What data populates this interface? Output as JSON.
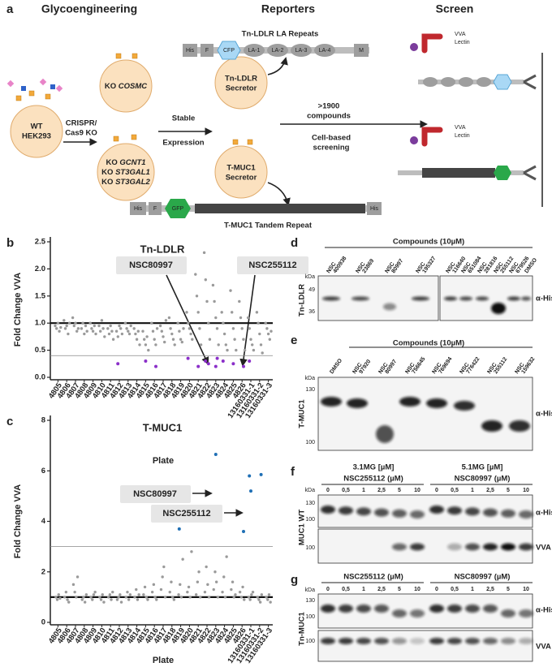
{
  "panel_a": {
    "letter": "a",
    "headers": [
      "Glycoengineering",
      "Reporters",
      "Screen"
    ],
    "wt": [
      "WT",
      "HEK293"
    ],
    "crispr": [
      "CRISPR/",
      "Cas9 KO"
    ],
    "ko_cosmc": [
      "KO ",
      "COSMC"
    ],
    "ko_lines": [
      [
        "KO ",
        "GCNT1"
      ],
      [
        "KO ",
        "ST3GAL1"
      ],
      [
        "KO ",
        "ST3GAL2"
      ]
    ],
    "stable": [
      "Stable",
      "Expression"
    ],
    "tn_secretor": [
      "Tn-LDLR",
      "Secretor"
    ],
    "tmuc_secretor": [
      "T-MUC1",
      "Secretor"
    ],
    "tn_construct_title": "Tn-LDLR LA Repeats",
    "tn_construct": [
      "His",
      "F",
      "CFP",
      "LA-1",
      "LA-2",
      "LA-3",
      "LA-4",
      "M"
    ],
    "tmuc_construct_title": "T-MUC1 Tandem Repeat",
    "tmuc_construct": [
      "His",
      "F",
      "GFP",
      "His"
    ],
    "compounds": [
      ">1900",
      "compounds"
    ],
    "cell_based": [
      "Cell-based",
      "screening"
    ],
    "lectin": [
      "VVA",
      "Lectin"
    ]
  },
  "panel_b": {
    "letter": "b",
    "title": "Tn-LDLR",
    "ylabel": "Fold Change VVA",
    "xlabel": "Plate",
    "categories": [
      "4805",
      "4806",
      "4807",
      "4808",
      "4809",
      "4810",
      "4811",
      "4812",
      "4813",
      "4814",
      "4815",
      "4816",
      "4817",
      "4818",
      "4819",
      "4820",
      "4821",
      "4822",
      "4823",
      "4824",
      "4825",
      "4826",
      "13160331-1",
      "13160331-2",
      "13160331-3"
    ],
    "ylim": [
      0,
      2.5
    ],
    "yticks": [
      {
        "value": 0,
        "label": "0.0"
      },
      0.5,
      {
        "value": 1,
        "label": "1.0"
      },
      1.5,
      {
        "value": 2,
        "label": "2.0"
      },
      2.5
    ],
    "reference_line": 1,
    "threshold_line": 0.4,
    "values": [
      [
        0.95,
        0.9,
        1.0,
        0.85,
        0.92
      ],
      [
        1.05,
        0.9,
        0.95,
        0.8,
        1.0
      ],
      [
        1.1,
        0.95,
        1.0,
        0.85,
        0.9
      ],
      [
        0.9,
        1.0,
        0.8,
        0.95,
        0.85
      ],
      [
        1.0,
        0.9,
        0.85,
        0.95,
        0.8
      ],
      [
        0.95,
        0.85,
        1.05,
        0.9,
        0.75
      ],
      [
        0.9,
        0.8,
        0.95,
        0.85,
        0.7
      ],
      [
        0.85,
        0.75,
        0.95,
        0.9,
        0.8
      ],
      [
        1.0,
        0.9,
        0.85,
        0.8,
        0.95
      ],
      [
        0.9,
        0.8,
        0.7,
        0.85,
        0.6
      ],
      [
        0.85,
        0.7,
        0.6,
        0.75,
        0.5
      ],
      [
        1.0,
        0.85,
        0.7,
        0.6,
        0.9
      ],
      [
        0.95,
        0.85,
        0.75,
        0.65,
        1.05
      ],
      [
        1.1,
        0.9,
        0.8,
        0.7,
        0.6
      ],
      [
        1.0,
        0.85,
        0.7,
        0.65,
        0.9
      ],
      [
        1.2,
        1.0,
        0.9,
        0.8,
        0.7
      ],
      [
        1.9,
        1.5,
        1.2,
        0.9,
        0.6
      ],
      [
        2.3,
        1.8,
        1.4,
        1.0,
        0.7
      ],
      [
        1.7,
        1.4,
        1.1,
        0.9,
        0.6
      ],
      [
        1.2,
        1.0,
        0.8,
        0.6,
        0.5
      ],
      [
        1.6,
        1.2,
        0.9,
        0.7,
        0.5
      ],
      [
        1.4,
        1.1,
        0.9,
        0.7,
        0.5
      ],
      [
        1.1,
        0.9,
        0.7,
        0.6,
        0.5
      ],
      [
        1.2,
        1.0,
        0.8,
        0.6,
        0.45
      ],
      [
        1.0,
        0.9,
        0.8,
        0.7,
        0.85
      ]
    ],
    "color": "#9a9a9a",
    "hits": {
      "plate": [
        7,
        10,
        11,
        15,
        16,
        17,
        17,
        18,
        18,
        19,
        20,
        21,
        22
      ],
      "values": [
        0.25,
        0.3,
        0.2,
        0.35,
        0.2,
        0.25,
        0.3,
        0.2,
        0.35,
        0.3,
        0.25,
        0.2,
        0.3
      ],
      "color": "#8b2fc9"
    },
    "annotations": [
      "NSC80997",
      "NSC255112"
    ]
  },
  "panel_c": {
    "letter": "c",
    "title": "T-MUC1",
    "ylabel": "Fold Change VVA",
    "xlabel": "Plate",
    "categories": [
      "4805",
      "4806",
      "4807",
      "4808",
      "4809",
      "4810",
      "4811",
      "4812",
      "4813",
      "4814",
      "4815",
      "4816",
      "4817",
      "4818",
      "4819",
      "4820",
      "4821",
      "4822",
      "4823",
      "4824",
      "4825",
      "4826",
      "13160331-1",
      "13160331-2",
      "13160331-3"
    ],
    "ylim": [
      0,
      8
    ],
    "yticks": [
      0,
      2,
      4,
      6,
      8
    ],
    "reference_line": 1,
    "threshold_line": 3,
    "values": [
      [
        1.0,
        0.9,
        1.1,
        0.95
      ],
      [
        1.0,
        1.2,
        0.9,
        0.8
      ],
      [
        1.5,
        1.2,
        1.0,
        1.8
      ],
      [
        0.9,
        1.0,
        0.8,
        1.1
      ],
      [
        1.0,
        0.9,
        1.1,
        1.2
      ],
      [
        1.0,
        0.9,
        1.1,
        0.8
      ],
      [
        1.0,
        1.1,
        0.9,
        1.2
      ],
      [
        0.9,
        1.0,
        1.1,
        0.8
      ],
      [
        1.0,
        1.2,
        0.9,
        1.1
      ],
      [
        1.0,
        1.3,
        0.9,
        1.1
      ],
      [
        1.1,
        1.4,
        1.0,
        0.9
      ],
      [
        1.2,
        1.5,
        1.0,
        0.9
      ],
      [
        1.3,
        1.8,
        2.2,
        1.0
      ],
      [
        1.2,
        1.6,
        1.0,
        0.9
      ],
      [
        1.1,
        1.5,
        1.0,
        2.5
      ],
      [
        1.2,
        1.4,
        1.0,
        2.8
      ],
      [
        1.1,
        1.6,
        2.0,
        1.0
      ],
      [
        1.2,
        2.2,
        1.5,
        1.0
      ],
      [
        1.3,
        2.0,
        1.6,
        1.0
      ],
      [
        1.2,
        1.8,
        1.0,
        2.6
      ],
      [
        1.3,
        1.6,
        1.0,
        1.1
      ],
      [
        1.2,
        1.0,
        1.4,
        0.9
      ],
      [
        1.0,
        0.9,
        1.1,
        1.2
      ],
      [
        1.0,
        0.9,
        0.8,
        1.1
      ],
      [
        1.0,
        0.9,
        1.1,
        0.8
      ]
    ],
    "color": "#9a9a9a",
    "hits": {
      "plate": [
        14,
        18,
        21,
        22,
        22,
        23
      ],
      "values": [
        3.7,
        6.65,
        3.6,
        5.8,
        5.2,
        5.85
      ],
      "color": "#1f6fb5"
    },
    "annotations": [
      "NSC80997",
      "NSC255112"
    ]
  },
  "panel_d": {
    "letter": "d",
    "header": "Compounds (10µM)",
    "lanes": [
      [
        "NSC",
        "400938"
      ],
      [
        "NSC",
        "23869"
      ],
      [
        "NSC",
        "80997"
      ],
      [
        "NSC",
        "195327"
      ],
      [
        "NSC",
        "116640"
      ],
      [
        "NSC",
        "651084"
      ],
      [
        "NSC",
        "281816"
      ],
      [
        "NSC",
        "255112"
      ],
      [
        "NSC",
        "679526"
      ],
      [
        "DMSO"
      ]
    ],
    "kda": "kDa",
    "markers": [
      "49",
      "36"
    ],
    "ylabel": "Tn-LDLR",
    "antibody": "α-His"
  },
  "panel_e": {
    "letter": "e",
    "header": "Compounds (10µM)",
    "lanes": [
      [
        "DMSO"
      ],
      [
        "NSC",
        "97920"
      ],
      [
        "NSC",
        "80997"
      ],
      [
        "NSC",
        "756645"
      ],
      [
        "NSC",
        "769694"
      ],
      [
        "NSC",
        "776422"
      ],
      [
        "NSC",
        "255112"
      ],
      [
        "NSC",
        "159632"
      ]
    ],
    "kda": "kDa",
    "markers": [
      "130",
      "100"
    ],
    "ylabel": "T-MUC1",
    "antibody": "α-His"
  },
  "panel_f": {
    "letter": "f",
    "groups": [
      [
        "3.1MG [µM]",
        "NSC255112 (µM)"
      ],
      [
        "5.1MG [µM]",
        "NSC80997 (µM)"
      ]
    ],
    "concentrations": [
      "0",
      "0,5",
      "1",
      "2,5",
      "5",
      "10"
    ],
    "kda": "kDa",
    "markers_top": [
      "130",
      "100"
    ],
    "markers_bottom": [
      "100"
    ],
    "ylabel": "MUC1 WT",
    "antibodies": [
      "α-His",
      "VVA"
    ]
  },
  "panel_g": {
    "letter": "g",
    "groups": [
      "NSC255112 (µM)",
      "NSC80997 (µM)"
    ],
    "concentrations": [
      "0",
      "0,5",
      "1",
      "2,5",
      "5",
      "10"
    ],
    "kda": "kDa",
    "markers_top": [
      "130",
      "100"
    ],
    "markers_bottom": [
      "100"
    ],
    "ylabel": "Tn-MUC1",
    "antibodies": [
      "α-His",
      "VVA"
    ]
  }
}
